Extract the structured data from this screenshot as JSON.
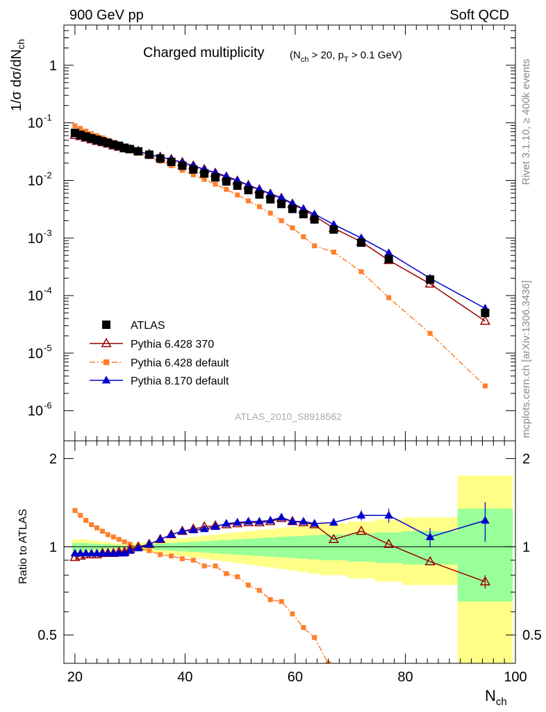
{
  "header": {
    "left": "900 GeV pp",
    "right": "Soft QCD"
  },
  "side_labels": {
    "rivet": "Rivet 3.1.10, ≥ 400k events",
    "mcplots": "mcplots.cern.ch [arXiv:1306.3436]"
  },
  "watermark": "ATLAS_2010_S8918562",
  "chart_data": [
    {
      "type": "line",
      "panel": "main",
      "title": {
        "main": "Charged multiplicity",
        "cuts": "(N_ch > 20, p_T > 0.1 GeV)"
      },
      "ylabel": "1/σ dσ/dN_ch",
      "y_scale": "log",
      "ylim": [
        3e-07,
        5
      ],
      "xlim": [
        18,
        100
      ],
      "y_tick_labels": [
        "1",
        "10^-1",
        "10^-2",
        "10^-3",
        "10^-4",
        "10^-5",
        "10^-6"
      ],
      "legend": {
        "position": "bottom-left",
        "entries": [
          "ATLAS",
          "Pythia 6.428 370",
          "Pythia 6.428 default",
          "Pythia 8.170 default"
        ]
      },
      "series": [
        {
          "name": "ATLAS",
          "color": "#000000",
          "marker": "square-filled",
          "x": [
            20,
            21,
            22,
            23,
            24,
            25,
            26,
            27,
            28,
            29,
            30,
            31.5,
            33.5,
            35.5,
            37.5,
            39.5,
            41.5,
            43.5,
            45.5,
            47.5,
            49.5,
            51.5,
            53.5,
            55.5,
            57.5,
            59.5,
            61.5,
            63.5,
            67,
            72,
            77,
            84.5,
            94.5
          ],
          "y": [
            0.067,
            0.062,
            0.058,
            0.054,
            0.051,
            0.048,
            0.045,
            0.042,
            0.04,
            0.037,
            0.035,
            0.032,
            0.028,
            0.024,
            0.021,
            0.018,
            0.0155,
            0.0132,
            0.0113,
            0.0096,
            0.0081,
            0.0068,
            0.0057,
            0.0047,
            0.0039,
            0.0032,
            0.0026,
            0.0021,
            0.0014,
            0.00083,
            0.00043,
            0.00019,
            5e-05
          ]
        },
        {
          "name": "Pythia 6.428 370",
          "color": "#990000",
          "marker": "triangle-open",
          "x": [
            20,
            21,
            22,
            23,
            24,
            25,
            26,
            27,
            28,
            29,
            30,
            31.5,
            33.5,
            35.5,
            37.5,
            39.5,
            41.5,
            43.5,
            45.5,
            47.5,
            49.5,
            51.5,
            53.5,
            55.5,
            57.5,
            59.5,
            61.5,
            63.5,
            67,
            72,
            77,
            84.5,
            94.5
          ],
          "y": [
            0.061,
            0.058,
            0.0545,
            0.051,
            0.048,
            0.0455,
            0.043,
            0.04,
            0.038,
            0.0355,
            0.0345,
            0.032,
            0.0285,
            0.0255,
            0.0232,
            0.0205,
            0.018,
            0.0155,
            0.0134,
            0.0115,
            0.0098,
            0.0082,
            0.0069,
            0.0058,
            0.0049,
            0.0039,
            0.0031,
            0.0024,
            0.00148,
            0.00086,
            0.00041,
            0.00016,
            3.6e-05
          ]
        },
        {
          "name": "Pythia 6.428 default",
          "color": "#ff7f2a",
          "marker": "square-small",
          "x": [
            20,
            21,
            22,
            23,
            24,
            25,
            26,
            27,
            28,
            29,
            30,
            31.5,
            33.5,
            35.5,
            37.5,
            39.5,
            41.5,
            43.5,
            45.5,
            47.5,
            49.5,
            51.5,
            53.5,
            55.5,
            57.5,
            59.5,
            61.5,
            63.5,
            67,
            72,
            77,
            84.5,
            94.5
          ],
          "y": [
            0.089,
            0.08,
            0.072,
            0.065,
            0.06,
            0.055,
            0.05,
            0.046,
            0.042,
            0.038,
            0.035,
            0.03,
            0.026,
            0.0215,
            0.018,
            0.015,
            0.0125,
            0.0104,
            0.0086,
            0.007,
            0.0056,
            0.0044,
            0.0035,
            0.0027,
            0.002,
            0.0015,
            0.00105,
            0.00073,
            0.00057,
            0.00026,
            9.2e-05,
            2.2e-05,
            2.7e-06
          ]
        },
        {
          "name": "Pythia 8.170 default",
          "color": "#0000cc",
          "marker": "triangle-filled",
          "x": [
            20,
            21,
            22,
            23,
            24,
            25,
            26,
            27,
            28,
            29,
            30,
            31.5,
            33.5,
            35.5,
            37.5,
            39.5,
            41.5,
            43.5,
            45.5,
            47.5,
            49.5,
            51.5,
            53.5,
            55.5,
            57.5,
            59.5,
            61.5,
            63.5,
            67,
            72,
            77,
            84.5,
            94.5
          ],
          "y": [
            0.064,
            0.059,
            0.055,
            0.051,
            0.048,
            0.0455,
            0.043,
            0.04,
            0.038,
            0.035,
            0.034,
            0.032,
            0.0285,
            0.0255,
            0.0232,
            0.0205,
            0.018,
            0.0156,
            0.0136,
            0.0118,
            0.01,
            0.0083,
            0.007,
            0.0059,
            0.005,
            0.004,
            0.0032,
            0.0026,
            0.00172,
            0.001,
            0.00055,
            0.0002,
            6e-05
          ]
        }
      ]
    },
    {
      "type": "line",
      "panel": "ratio",
      "ylabel": "Ratio to ATLAS",
      "xlabel": "N_ch",
      "ylim": [
        0.4,
        2.3
      ],
      "xlim": [
        18,
        100
      ],
      "x_tick_labels": [
        "20",
        "40",
        "60",
        "80",
        "100"
      ],
      "y_tick_labels": [
        "0.5",
        "1",
        "2"
      ],
      "uncertainty_bands": {
        "inner_color": "#99ff99",
        "outer_color": "#ffff88",
        "bins": [
          {
            "x0": 19.5,
            "x1": 20.5,
            "inner": 0.03,
            "outer": 0.06
          },
          {
            "x0": 20.5,
            "x1": 21.5,
            "inner": 0.03,
            "outer": 0.06
          },
          {
            "x0": 21.5,
            "x1": 22.5,
            "inner": 0.03,
            "outer": 0.06
          },
          {
            "x0": 22.5,
            "x1": 23.5,
            "inner": 0.025,
            "outer": 0.05
          },
          {
            "x0": 23.5,
            "x1": 24.5,
            "inner": 0.025,
            "outer": 0.05
          },
          {
            "x0": 24.5,
            "x1": 25.5,
            "inner": 0.02,
            "outer": 0.04
          },
          {
            "x0": 25.5,
            "x1": 26.5,
            "inner": 0.02,
            "outer": 0.04
          },
          {
            "x0": 26.5,
            "x1": 27.5,
            "inner": 0.015,
            "outer": 0.03
          },
          {
            "x0": 27.5,
            "x1": 28.5,
            "inner": 0.012,
            "outer": 0.025
          },
          {
            "x0": 28.5,
            "x1": 29.5,
            "inner": 0.01,
            "outer": 0.02
          },
          {
            "x0": 29.5,
            "x1": 30.5,
            "inner": 0.01,
            "outer": 0.02
          },
          {
            "x0": 30.5,
            "x1": 32.5,
            "inner": 0.015,
            "outer": 0.03
          },
          {
            "x0": 32.5,
            "x1": 34.5,
            "inner": 0.02,
            "outer": 0.04
          },
          {
            "x0": 34.5,
            "x1": 36.5,
            "inner": 0.025,
            "outer": 0.05
          },
          {
            "x0": 36.5,
            "x1": 38.5,
            "inner": 0.03,
            "outer": 0.06
          },
          {
            "x0": 38.5,
            "x1": 40.5,
            "inner": 0.035,
            "outer": 0.07
          },
          {
            "x0": 40.5,
            "x1": 42.5,
            "inner": 0.04,
            "outer": 0.08
          },
          {
            "x0": 42.5,
            "x1": 44.5,
            "inner": 0.045,
            "outer": 0.09
          },
          {
            "x0": 44.5,
            "x1": 46.5,
            "inner": 0.05,
            "outer": 0.1
          },
          {
            "x0": 46.5,
            "x1": 48.5,
            "inner": 0.055,
            "outer": 0.11
          },
          {
            "x0": 48.5,
            "x1": 50.5,
            "inner": 0.06,
            "outer": 0.12
          },
          {
            "x0": 50.5,
            "x1": 52.5,
            "inner": 0.065,
            "outer": 0.13
          },
          {
            "x0": 52.5,
            "x1": 54.5,
            "inner": 0.07,
            "outer": 0.14
          },
          {
            "x0": 54.5,
            "x1": 56.5,
            "inner": 0.075,
            "outer": 0.15
          },
          {
            "x0": 56.5,
            "x1": 58.5,
            "inner": 0.08,
            "outer": 0.16
          },
          {
            "x0": 58.5,
            "x1": 60.5,
            "inner": 0.085,
            "outer": 0.17
          },
          {
            "x0": 60.5,
            "x1": 62.5,
            "inner": 0.09,
            "outer": 0.18
          },
          {
            "x0": 62.5,
            "x1": 64.5,
            "inner": 0.095,
            "outer": 0.19
          },
          {
            "x0": 64.5,
            "x1": 69.5,
            "inner": 0.1,
            "outer": 0.2
          },
          {
            "x0": 69.5,
            "x1": 74.5,
            "inner": 0.11,
            "outer": 0.22
          },
          {
            "x0": 74.5,
            "x1": 79.5,
            "inner": 0.12,
            "outer": 0.24
          },
          {
            "x0": 79.5,
            "x1": 89.5,
            "inner": 0.13,
            "outer": 0.26
          },
          {
            "x0": 89.5,
            "x1": 99.5,
            "inner": 0.35,
            "outer": 0.75
          }
        ]
      },
      "series": [
        {
          "name": "Pythia 6.428 370",
          "color": "#990000",
          "marker": "triangle-open",
          "x": [
            20,
            21,
            22,
            23,
            24,
            25,
            26,
            27,
            28,
            29,
            30,
            31.5,
            33.5,
            35.5,
            37.5,
            39.5,
            41.5,
            43.5,
            45.5,
            47.5,
            49.5,
            51.5,
            53.5,
            55.5,
            57.5,
            59.5,
            61.5,
            63.5,
            67,
            72,
            77,
            84.5,
            94.5
          ],
          "y": [
            0.92,
            0.93,
            0.94,
            0.94,
            0.94,
            0.95,
            0.95,
            0.95,
            0.96,
            0.96,
            0.98,
            1.0,
            1.02,
            1.06,
            1.1,
            1.13,
            1.15,
            1.17,
            1.18,
            1.19,
            1.2,
            1.21,
            1.21,
            1.22,
            1.25,
            1.22,
            1.21,
            1.19,
            1.06,
            1.13,
            1.02,
            0.89,
            0.76
          ]
        },
        {
          "name": "Pythia 6.428 default",
          "color": "#ff7f2a",
          "marker": "square-small",
          "x": [
            20,
            21,
            22,
            23,
            24,
            25,
            26,
            27,
            28,
            29,
            30,
            31.5,
            33.5,
            35.5,
            37.5,
            39.5,
            41.5,
            43.5,
            45.5,
            47.5,
            49.5,
            51.5,
            53.5,
            55.5,
            57.5,
            59.5,
            61.5,
            63.5,
            66
          ],
          "y": [
            1.33,
            1.28,
            1.23,
            1.19,
            1.16,
            1.13,
            1.1,
            1.08,
            1.06,
            1.04,
            1.02,
            0.99,
            0.97,
            0.94,
            0.93,
            0.91,
            0.9,
            0.86,
            0.86,
            0.81,
            0.79,
            0.74,
            0.71,
            0.66,
            0.65,
            0.59,
            0.53,
            0.49,
            0.4
          ]
        },
        {
          "name": "Pythia 8.170 default",
          "color": "#0000cc",
          "marker": "triangle-filled",
          "x": [
            20,
            21,
            22,
            23,
            24,
            25,
            26,
            27,
            28,
            29,
            30,
            31.5,
            33.5,
            35.5,
            37.5,
            39.5,
            41.5,
            43.5,
            45.5,
            47.5,
            49.5,
            51.5,
            53.5,
            55.5,
            57.5,
            59.5,
            61.5,
            63.5,
            67,
            72,
            77,
            84.5,
            94.5
          ],
          "y": [
            0.95,
            0.95,
            0.95,
            0.95,
            0.95,
            0.95,
            0.95,
            0.95,
            0.95,
            0.95,
            0.97,
            0.99,
            1.02,
            1.06,
            1.1,
            1.13,
            1.14,
            1.15,
            1.17,
            1.2,
            1.21,
            1.22,
            1.22,
            1.23,
            1.26,
            1.22,
            1.22,
            1.2,
            1.21,
            1.28,
            1.28,
            1.08,
            1.23
          ]
        }
      ]
    }
  ]
}
